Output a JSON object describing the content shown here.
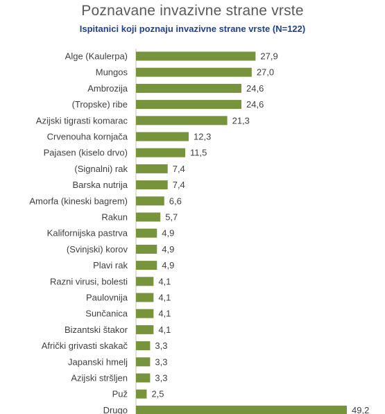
{
  "chart_data": {
    "type": "bar",
    "orientation": "horizontal",
    "title": "Poznavane invazivne strane vrste",
    "subtitle": "Ispitanici koji poznaju invazivne strane vrste (N=122)",
    "categories": [
      "Alge (Kaulerpa)",
      "Mungos",
      "Ambrozija",
      "(Tropske) ribe",
      "Azijski tigrasti komarac",
      "Crvenouha kornjača",
      "Pajasen (kiselo drvo)",
      "(Signalni) rak",
      "Barska nutrija",
      "Amorfa (kineski bagrem)",
      "Rakun",
      "Kalifornijska pastrva",
      "(Svinjski) korov",
      "Plavi rak",
      "Razni virusi, bolesti",
      "Paulovnija",
      "Sunčanica",
      "Bizantski štakor",
      "Afrički grivasti skakač",
      "Japanski hmelj",
      "Azijski stršljen",
      "Puž",
      "Drugo"
    ],
    "values": [
      27.9,
      27.0,
      24.6,
      24.6,
      21.3,
      12.3,
      11.5,
      7.4,
      7.4,
      6.6,
      5.7,
      4.9,
      4.9,
      4.9,
      4.1,
      4.1,
      4.1,
      4.1,
      3.3,
      3.3,
      3.3,
      2.5,
      49.2
    ],
    "value_labels": [
      "27,9",
      "27,0",
      "24,6",
      "24,6",
      "21,3",
      "12,3",
      "11,5",
      "7,4",
      "7,4",
      "6,6",
      "5,7",
      "4,9",
      "4,9",
      "4,9",
      "4,1",
      "4,1",
      "4,1",
      "4,1",
      "3,3",
      "3,3",
      "3,3",
      "2,5",
      "49,2"
    ],
    "xlim": [
      0,
      49.2
    ],
    "grid": false,
    "legend": "none",
    "bar_color": "#77933c"
  }
}
